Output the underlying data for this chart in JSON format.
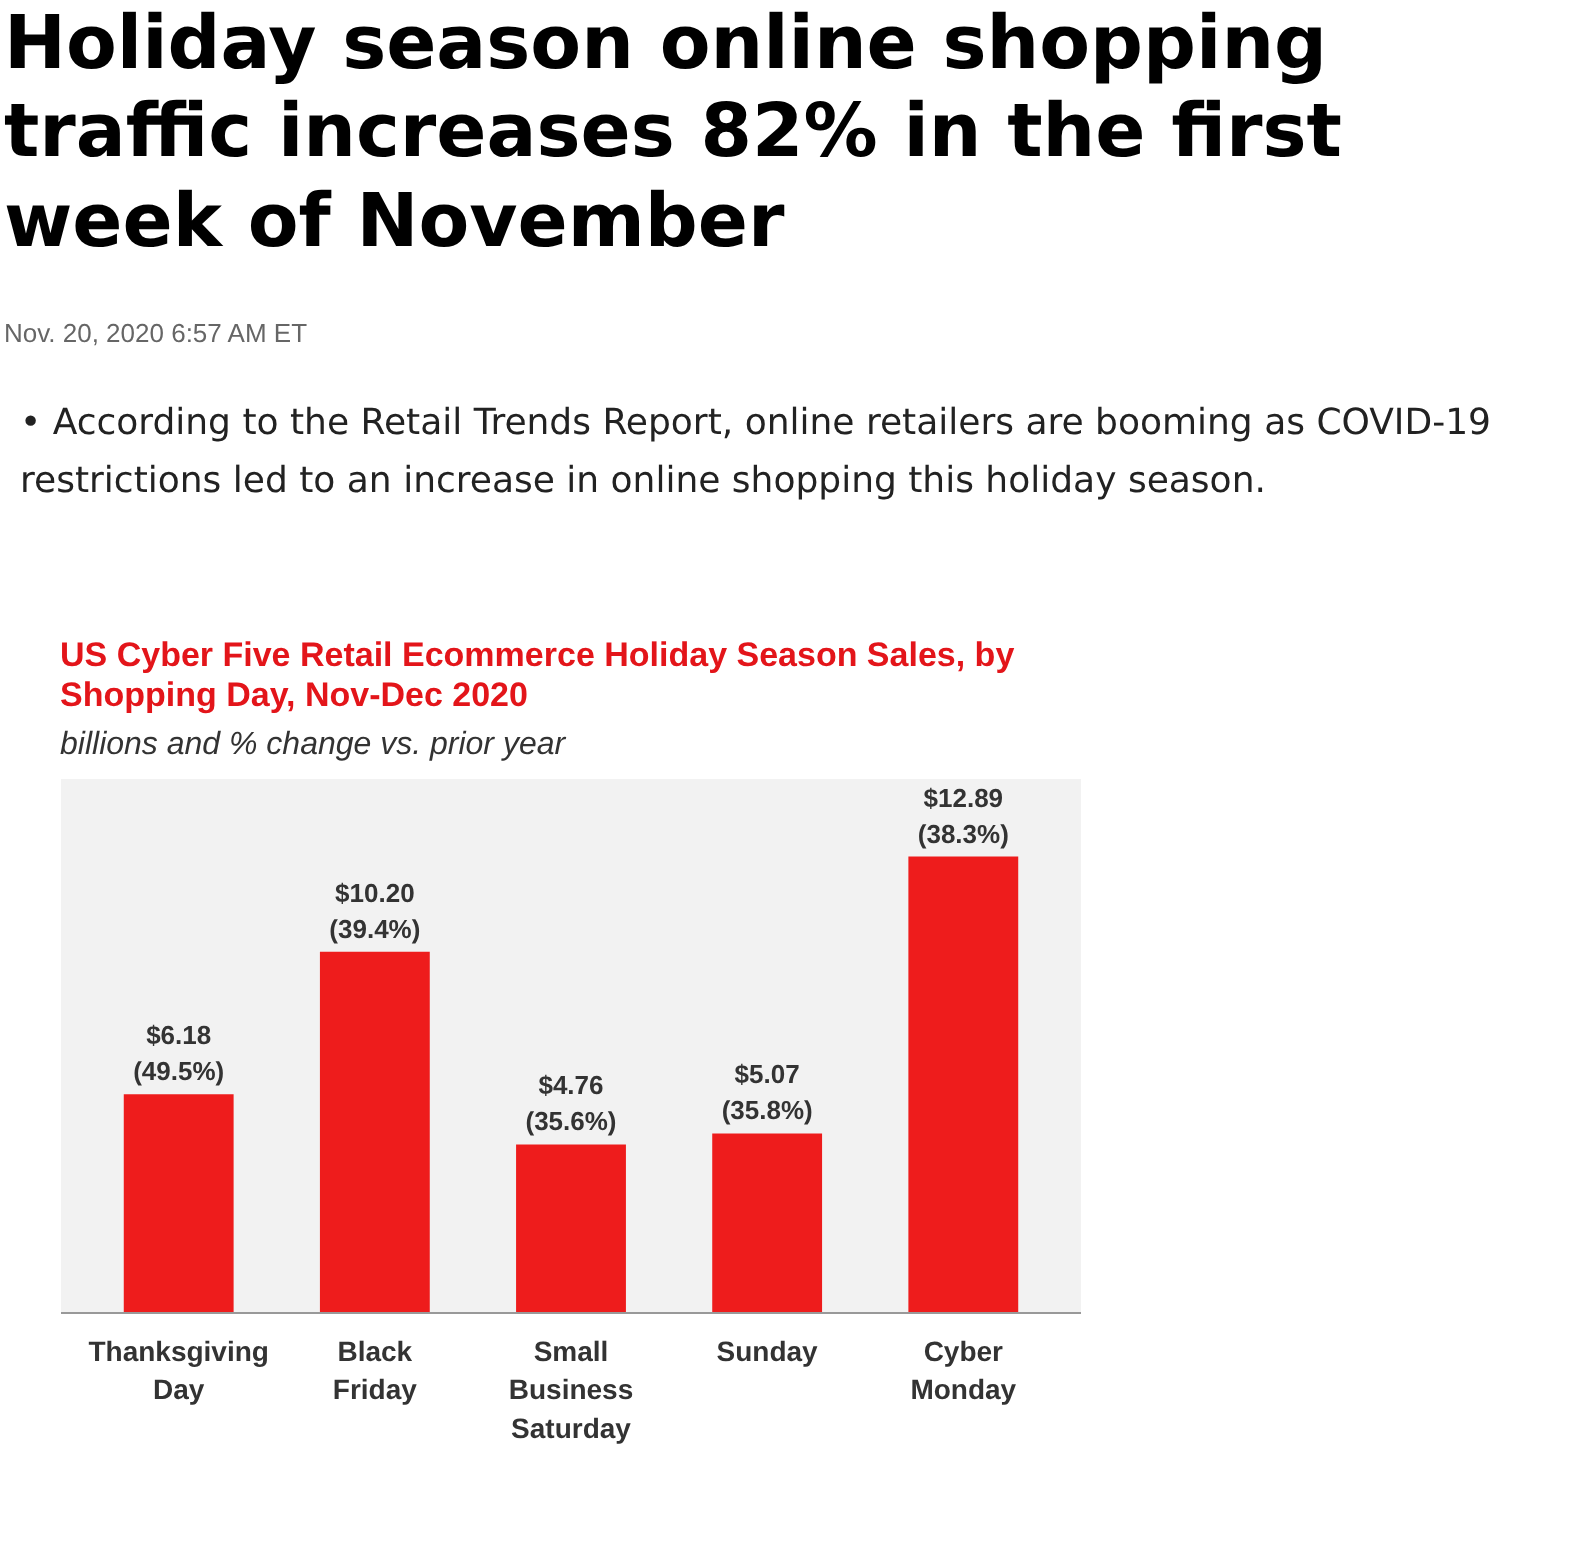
{
  "chart_data": {
    "type": "bar",
    "title": "US Cyber Five Retail Ecommerce Holiday Season Sales, by Shopping Day, Nov-Dec 2020",
    "subtitle": "billions and % change vs. prior year",
    "annotations": [
      "Holiday season online shopping traffic increases 82% in the first week of November",
      "Nov. 20, 2020 6:57 AM ET",
      "• According to the Retail Trends Report, online retailers are booming as COVID-19 restrictions led to an increase in online shopping this holiday season."
    ],
    "categories": [
      "Thanksgiving Day",
      "Black Friday",
      "Small Business Saturday",
      "Sunday",
      "Cyber Monday"
    ],
    "values": [
      6.18,
      10.2,
      4.76,
      5.07,
      12.89
    ],
    "value_labels": [
      "$6.18 (49.5%)",
      "$10.20 (39.4%)",
      "$4.76 (35.6%)",
      "$5.07 (35.8%)",
      "$12.89 (38.3%)"
    ],
    "color": "#ee1c1c",
    "grid": false
  }
}
